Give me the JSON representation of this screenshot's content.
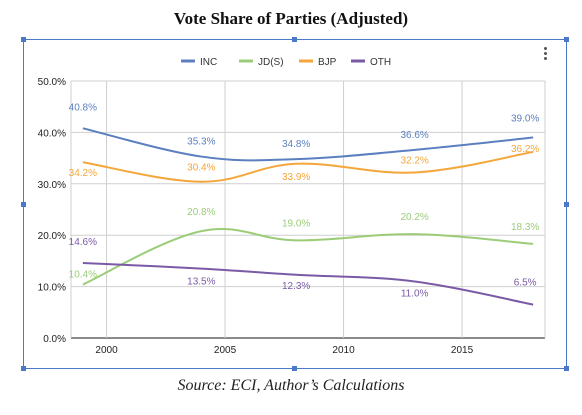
{
  "title": "Vote Share of Parties (Adjusted)",
  "source": "Source: ECI, Author’s Calculations",
  "menu_icon": "more-vertical-icon",
  "chart_data": {
    "type": "line",
    "title": "Vote Share of Parties (Adjusted)",
    "xlabel": "",
    "ylabel": "",
    "x": [
      1999,
      2004,
      2008,
      2013,
      2018
    ],
    "x_ticks": [
      2000,
      2005,
      2010,
      2015
    ],
    "x_tick_labels": [
      "2000",
      "2005",
      "2010",
      "2015"
    ],
    "ylim": [
      0,
      50
    ],
    "y_ticks": [
      0,
      10,
      20,
      30,
      40,
      50
    ],
    "y_tick_labels": [
      "0.0%",
      "10.0%",
      "20.0%",
      "30.0%",
      "40.0%",
      "50.0%"
    ],
    "grid": true,
    "legend_position": "top",
    "series": [
      {
        "name": "INC",
        "color": "#5b7fbf",
        "values": [
          40.8,
          35.3,
          34.8,
          36.6,
          39.0
        ],
        "labels": [
          "40.8%",
          "35.3%",
          "34.8%",
          "36.6%",
          "39.0%"
        ]
      },
      {
        "name": "JD(S)",
        "color": "#9ccc78",
        "values": [
          10.4,
          20.8,
          19.0,
          20.2,
          18.3
        ],
        "labels": [
          "10.4%",
          "20.8%",
          "19.0%",
          "20.2%",
          "18.3%"
        ]
      },
      {
        "name": "BJP",
        "color": "#f4a63a",
        "values": [
          34.2,
          30.4,
          33.9,
          32.2,
          36.2
        ],
        "labels": [
          "34.2%",
          "30.4%",
          "33.9%",
          "32.2%",
          "36.2%"
        ]
      },
      {
        "name": "OTH",
        "color": "#7a5aa6",
        "values": [
          14.6,
          13.5,
          12.3,
          11.0,
          6.5
        ],
        "labels": [
          "14.6%",
          "13.5%",
          "12.3%",
          "11.0%",
          "6.5%"
        ]
      }
    ]
  }
}
